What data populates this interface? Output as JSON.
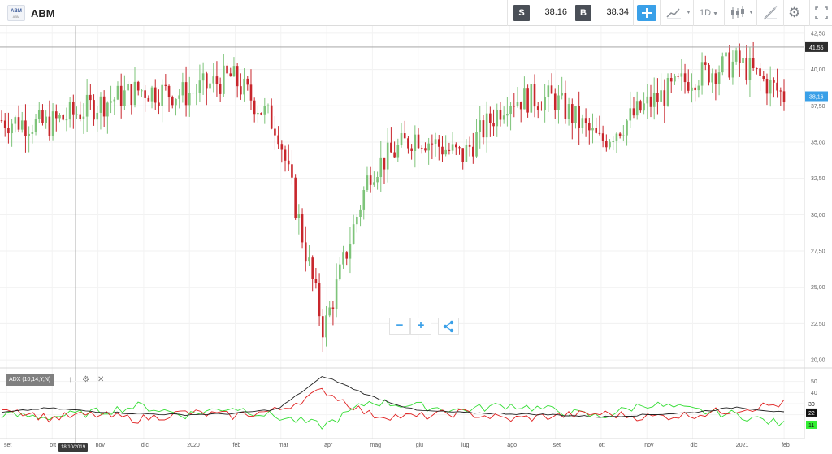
{
  "header": {
    "logo_text": "ABM",
    "logo_sub": "ABM",
    "symbol": "ABM",
    "sell_label": "S",
    "sell_price": "38.16",
    "buy_label": "B",
    "buy_price": "38.34",
    "interval_label": "1D",
    "icons": [
      "crosshair-icon",
      "line-chart-icon",
      "candles-icon",
      "draw-icon",
      "gear-icon"
    ]
  },
  "chart": {
    "y_ticks": [
      "42,50",
      "40,00",
      "37,50",
      "35,00",
      "32,50",
      "30,00",
      "27,50",
      "25,00",
      "22,50",
      "20,00"
    ],
    "crosshair_price": "41,55",
    "last_price": "38,16",
    "zoom_out": "−",
    "zoom_in": "+",
    "accent": "#3aa0e8",
    "up_color": "#7ec47a",
    "down_color": "#c8262c"
  },
  "indicator": {
    "label": "ADX (10,14,Y,N)",
    "y_ticks": [
      "50",
      "40",
      "30",
      "20",
      "10"
    ],
    "adx_value": "22",
    "di_minus_value": "30",
    "di_plus_value": "11"
  },
  "x_axis": {
    "months": [
      "set",
      "ott",
      "nov",
      "dic",
      "2020",
      "feb",
      "mar",
      "apr",
      "mag",
      "giu",
      "lug",
      "ago",
      "set",
      "ott",
      "nov",
      "dic",
      "2021",
      "feb"
    ],
    "crosshair_date": "18/10/2019"
  },
  "chart_data": {
    "type": "line",
    "title": "",
    "xlabel": "",
    "ylabel": "",
    "ylim": [
      19.5,
      43
    ],
    "x": [
      "set",
      "ott",
      "nov",
      "dic",
      "2020",
      "feb",
      "mar",
      "apr",
      "mag",
      "giu",
      "lug",
      "ago",
      "set",
      "ott",
      "nov",
      "dic",
      "2021",
      "feb"
    ],
    "series": [
      {
        "values": [
          36.5,
          36.2,
          37.5,
          38.6,
          38.3,
          39.5,
          36.0,
          22.0,
          33.0,
          35.5,
          34.0,
          38.0,
          38.0,
          35.0,
          37.5,
          39.5,
          40.5,
          38.2
        ]
      }
    ],
    "indicator_series": {
      "adx": [
        22,
        26,
        23,
        21,
        20,
        21,
        25,
        55,
        37,
        24,
        22,
        21,
        20,
        18,
        20,
        22,
        27,
        22
      ],
      "di_plus": [
        20,
        18,
        22,
        28,
        20,
        27,
        18,
        10,
        32,
        28,
        24,
        29,
        24,
        18,
        30,
        24,
        20,
        11
      ],
      "di_minus": [
        28,
        17,
        20,
        16,
        22,
        19,
        24,
        42,
        20,
        18,
        22,
        16,
        19,
        21,
        18,
        20,
        25,
        30
      ]
    }
  }
}
